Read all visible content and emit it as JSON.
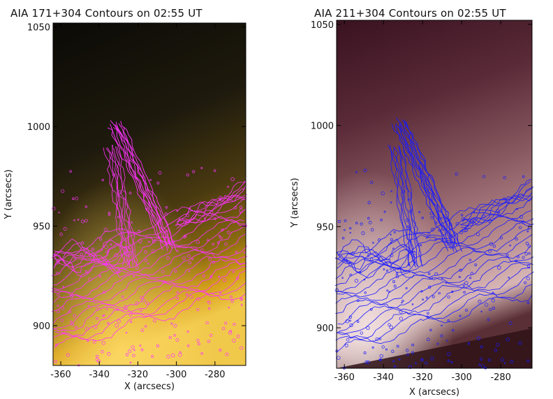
{
  "panels": [
    {
      "title": "AIA 171+304 Contours on 02:55 UT",
      "xlabel": "X (arcsecs)",
      "ylabel": "Y (arcsecs)",
      "x_ticks": [
        "-360",
        "-340",
        "-320",
        "-300",
        "-280"
      ],
      "y_ticks": [
        "1050",
        "1000",
        "950",
        "900"
      ],
      "xlim": [
        -364,
        -264
      ],
      "ylim": [
        880,
        1052
      ],
      "colormap": "gold-black",
      "contour_color": "#ff33ff"
    },
    {
      "title": "AIA 211+304 Contours on 02:55 UT",
      "xlabel": "X (arcsecs)",
      "ylabel": "Y (arcsecs)",
      "x_ticks": [
        "-360",
        "-340",
        "-320",
        "-300",
        "-280"
      ],
      "y_ticks": [
        "1050",
        "1000",
        "950",
        "900"
      ],
      "xlim": [
        -364,
        -264
      ],
      "ylim": [
        880,
        1052
      ],
      "colormap": "maroon-pink",
      "contour_color": "#1a1aff"
    }
  ]
}
